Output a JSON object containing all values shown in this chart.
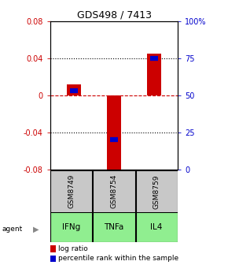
{
  "title": "GDS498 / 7413",
  "samples": [
    "GSM8749",
    "GSM8754",
    "GSM8759"
  ],
  "agents": [
    "IFNg",
    "TNFa",
    "IL4"
  ],
  "log_ratios": [
    0.012,
    -0.085,
    0.045
  ],
  "percentile_ranks": [
    53,
    20,
    75
  ],
  "ylim_left": [
    -0.08,
    0.08
  ],
  "ylim_right": [
    0,
    100
  ],
  "yticks_left": [
    -0.08,
    -0.04,
    0,
    0.04,
    0.08
  ],
  "yticks_right": [
    0,
    25,
    50,
    75,
    100
  ],
  "ytick_labels_right": [
    "0",
    "25",
    "50",
    "75",
    "100%"
  ],
  "bar_color": "#cc0000",
  "percentile_color": "#0000cc",
  "zero_line_color": "#cc0000",
  "grid_color": "#000000",
  "sample_bg_color": "#c8c8c8",
  "agent_bg_color": "#90ee90",
  "bar_width": 0.35,
  "title_fontsize": 9,
  "tick_fontsize": 7,
  "sample_fontsize": 6.5,
  "agent_fontsize": 7.5,
  "legend_fontsize": 6.5
}
